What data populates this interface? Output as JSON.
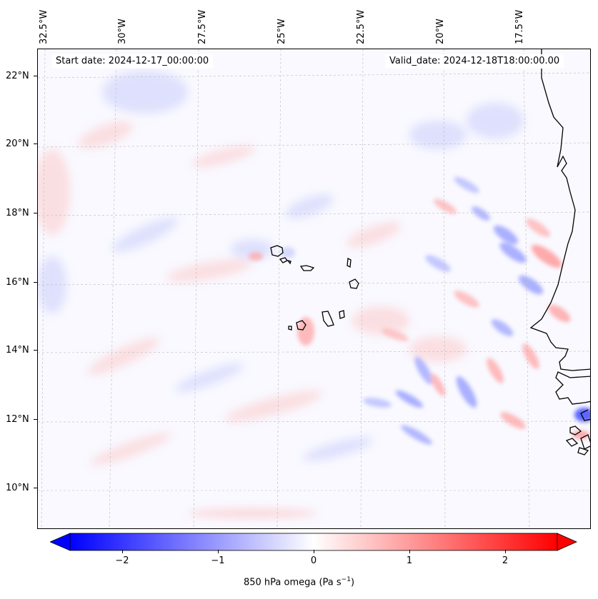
{
  "map": {
    "start_date": "Start date: 2024-12-17_00:00:00",
    "valid_date": "Valid_date: 2024-12-18T18:00:00.00",
    "lon_labels": [
      "32.5°W",
      "30°W",
      "27.5°W",
      "25°W",
      "22.5°W",
      "20°W",
      "17.5°W"
    ],
    "lat_labels": [
      "22°N",
      "20°N",
      "18°N",
      "16°N",
      "14°N",
      "12°N",
      "10°N"
    ],
    "field": "850 hPa omega",
    "units": "Pa s⁻¹"
  },
  "colorbar": {
    "label_prefix": "850 hPa omega (Pa s",
    "label_exp": "−1",
    "label_suffix": ")",
    "ticks": [
      "−2",
      "−1",
      "0",
      "1",
      "2"
    ],
    "range": [
      -2.6,
      2.6
    ],
    "colors": {
      "neg": "#0000ff",
      "zero": "#ffffff",
      "pos": "#ff0000"
    }
  }
}
